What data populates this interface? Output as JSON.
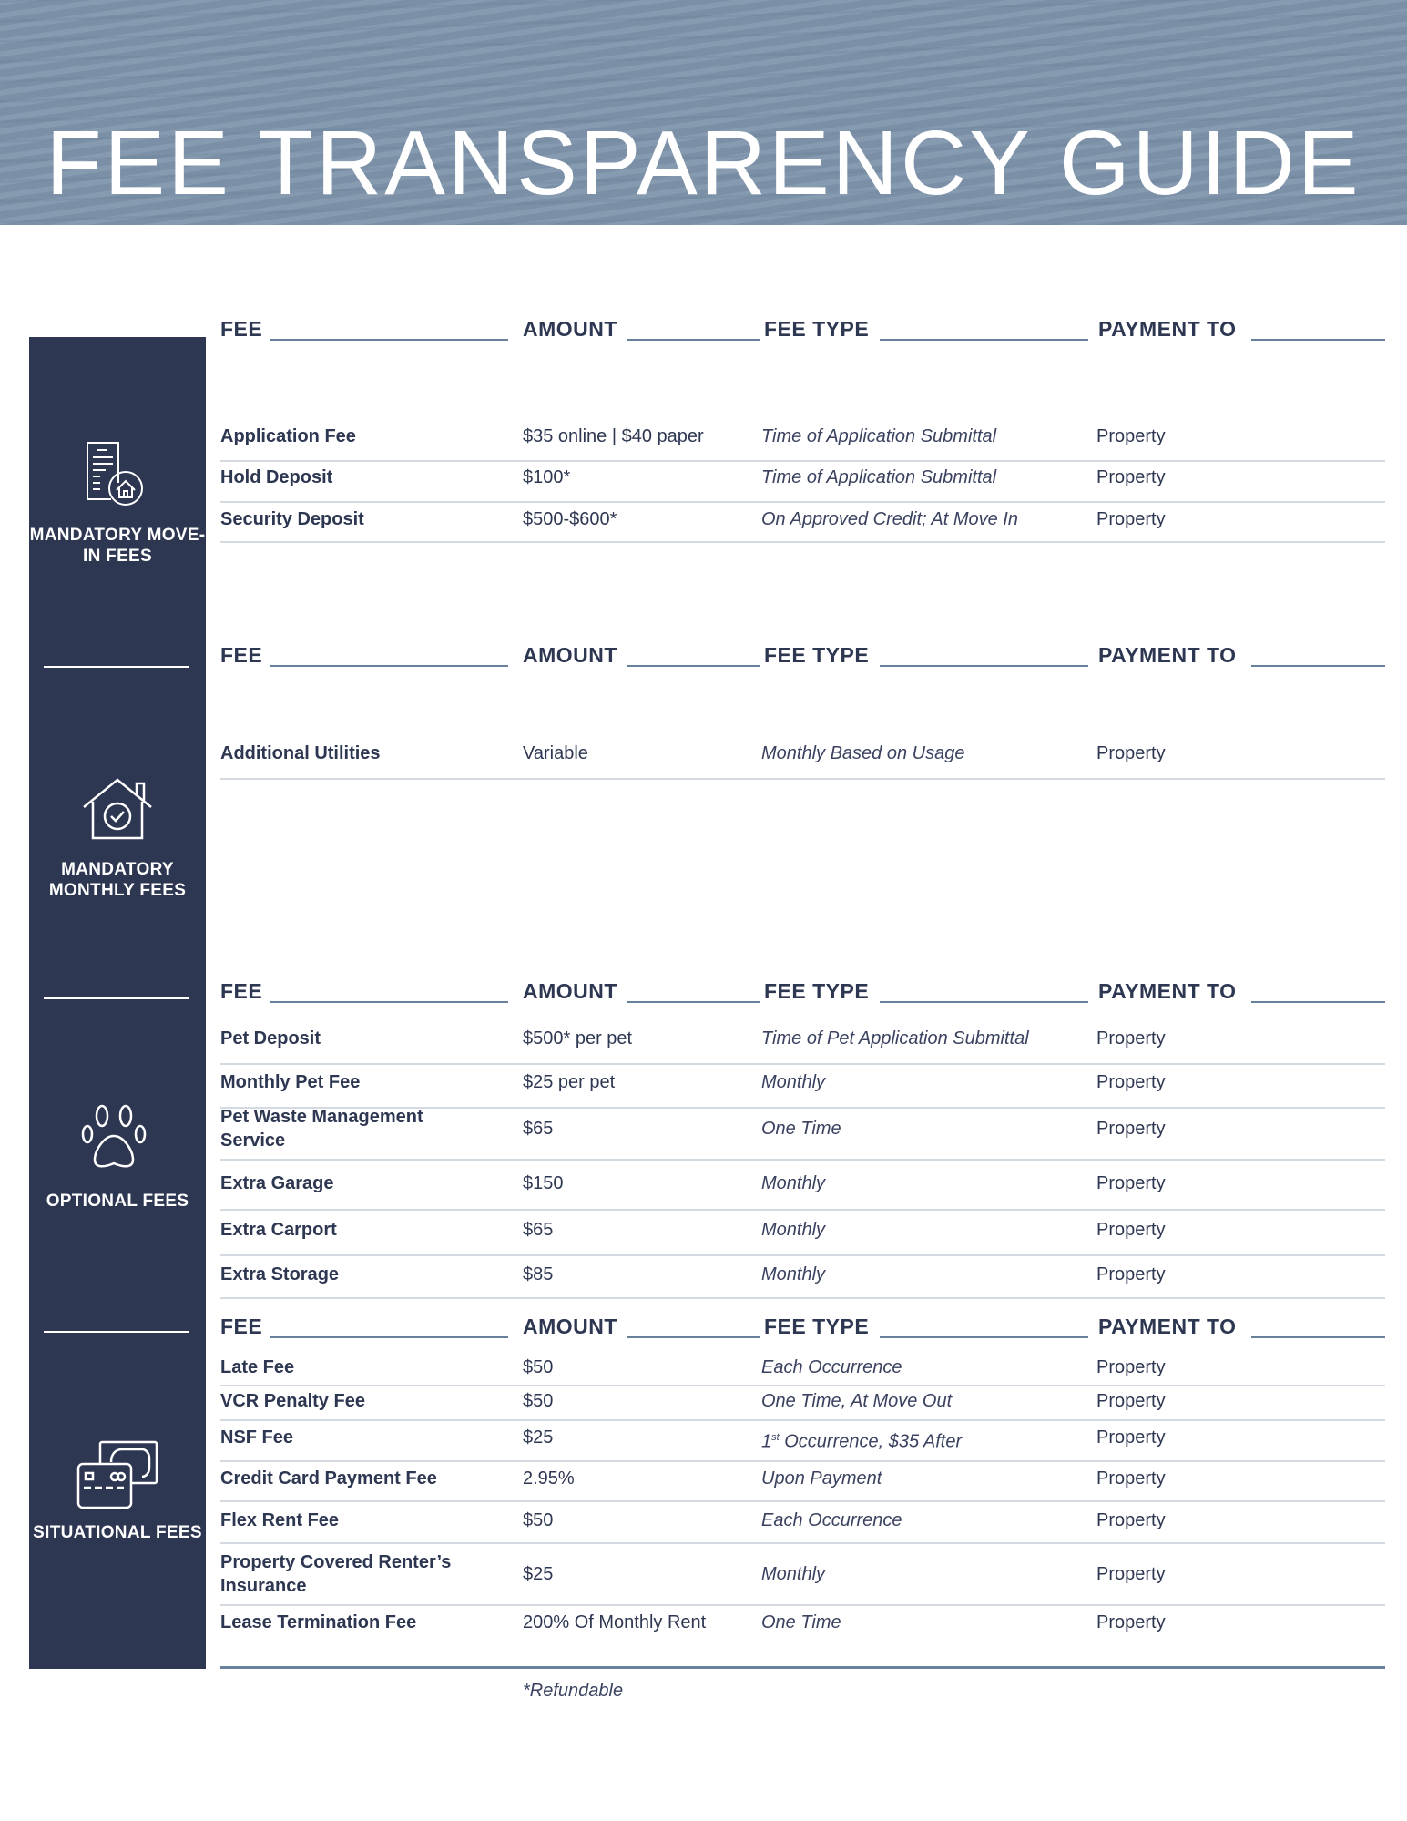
{
  "title": "FEE TRANSPARENCY GUIDE",
  "headers": {
    "fee": "FEE",
    "amount": "AMOUNT",
    "fee_type": "FEE TYPE",
    "payment_to": "PAYMENT TO"
  },
  "colors": {
    "banner": "#7f95ac",
    "sidebar": "#2e3752",
    "text": "#2e3752"
  },
  "sections": [
    {
      "label": "MANDATORY MOVE-IN FEES",
      "icon": "document-house-icon",
      "rows": [
        {
          "fee": "Application Fee",
          "amount": "$35 online | $40 paper",
          "type": "Time of Application Submittal",
          "to": "Property"
        },
        {
          "fee": "Hold Deposit",
          "amount": "$100*",
          "type": "Time of Application Submittal",
          "to": "Property"
        },
        {
          "fee": "Security Deposit",
          "amount": "$500-$600*",
          "type": "On Approved Credit; At Move In",
          "to": "Property"
        }
      ]
    },
    {
      "label": "MANDATORY MONTHLY FEES",
      "icon": "house-check-icon",
      "rows": [
        {
          "fee": "Additional Utilities",
          "amount": "Variable",
          "type": "Monthly Based on Usage",
          "to": "Property"
        }
      ]
    },
    {
      "label": "OPTIONAL FEES",
      "icon": "paw-icon",
      "rows": [
        {
          "fee": "Pet Deposit",
          "amount": "$500* per pet",
          "type": "Time of Pet Application Submittal",
          "to": "Property"
        },
        {
          "fee": "Monthly Pet Fee",
          "amount": "$25 per pet",
          "type": "Monthly",
          "to": "Property"
        },
        {
          "fee": "Pet Waste Management Service",
          "amount": "$65",
          "type": "One Time",
          "to": "Property"
        },
        {
          "fee": "Extra Garage",
          "amount": "$150",
          "type": "Monthly",
          "to": "Property"
        },
        {
          "fee": "Extra Carport",
          "amount": "$65",
          "type": "Monthly",
          "to": "Property"
        },
        {
          "fee": "Extra Storage",
          "amount": "$85",
          "type": "Monthly",
          "to": "Property"
        }
      ]
    },
    {
      "label": "SITUATIONAL FEES",
      "icon": "credit-card-cash-icon",
      "rows": [
        {
          "fee": "Late Fee",
          "amount": "$50",
          "type": "Each Occurrence",
          "to": "Property"
        },
        {
          "fee": "VCR Penalty Fee",
          "amount": "$50",
          "type": "One Time, At Move Out",
          "to": "Property"
        },
        {
          "fee": "NSF Fee",
          "amount": "$25",
          "type": "1st Occurrence, $35 After",
          "to": "Property"
        },
        {
          "fee": "Credit Card Payment Fee",
          "amount": "2.95%",
          "type": "Upon Payment",
          "to": "Property"
        },
        {
          "fee": "Flex Rent Fee",
          "amount": "$50",
          "type": "Each Occurrence",
          "to": "Property"
        },
        {
          "fee": "Property Covered Renter’s Insurance",
          "amount": "$25",
          "type": "Monthly",
          "to": "Property"
        },
        {
          "fee": "Lease Termination Fee",
          "amount": "200% Of Monthly Rent",
          "type": "One Time",
          "to": "Property"
        }
      ]
    }
  ],
  "footnote": "*Refundable"
}
